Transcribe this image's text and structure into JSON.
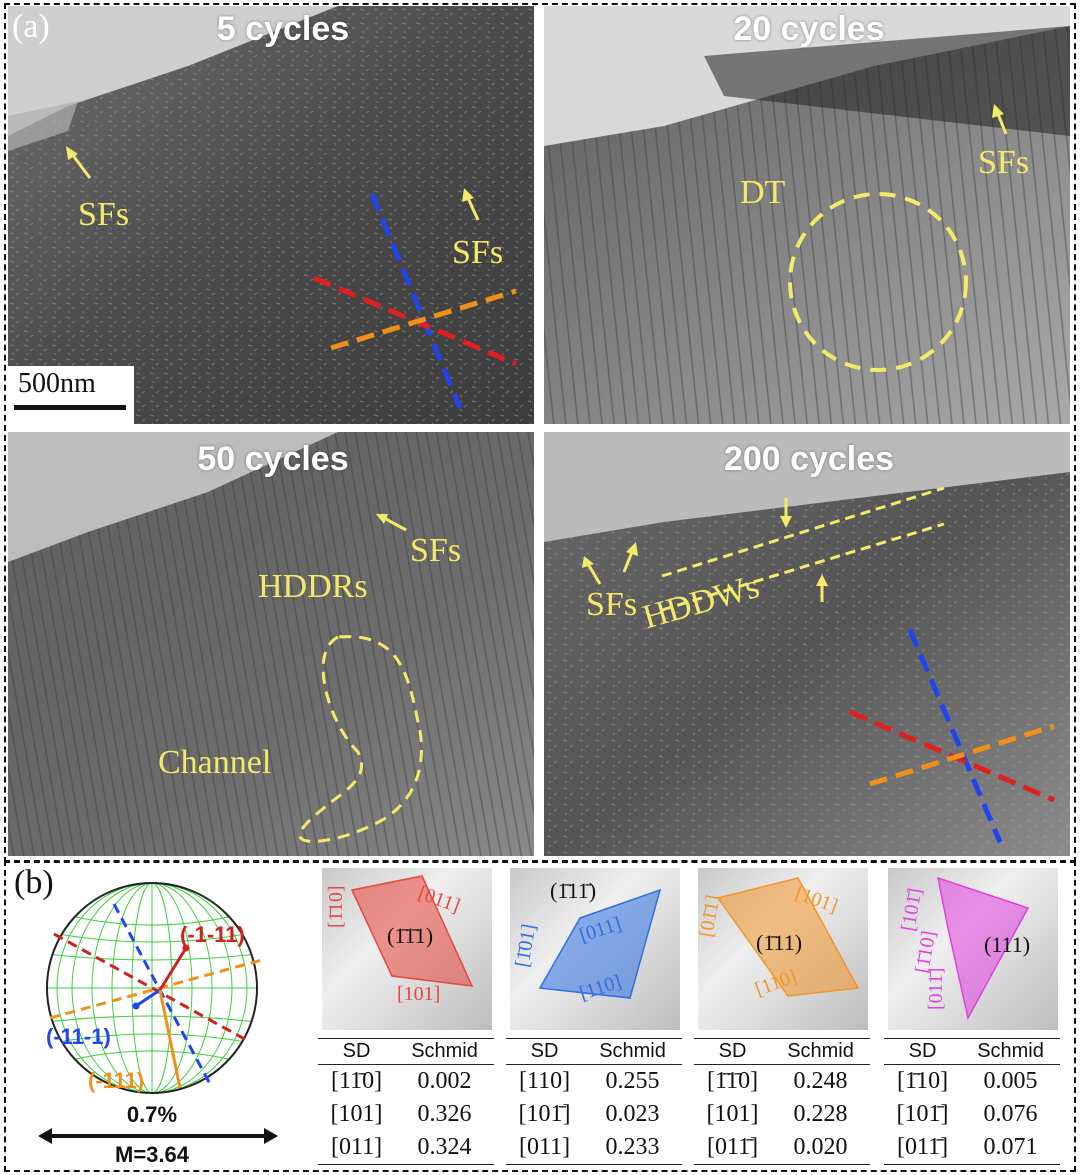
{
  "panel_a": {
    "label": "(a)",
    "scale_bar": "500nm",
    "titles": [
      "5 cycles",
      "20 cycles",
      "50 cycles",
      "200 cycles"
    ],
    "annotations": {
      "p1_sfs_left": "SFs",
      "p1_sfs_right": "SFs",
      "p2_dt": "DT",
      "p2_sfs": "SFs",
      "p3_sfs": "SFs",
      "p3_hddrs": "HDDRs",
      "p3_channel": "Channel",
      "p4_sfs": "SFs",
      "p4_hddws": "HDDWs"
    }
  },
  "panel_b": {
    "label": "(b)",
    "stereo": {
      "poles": [
        "(-1-11)",
        "(-11-1)",
        "(-111)"
      ],
      "strain": "0.7%",
      "m_value": "M=3.64"
    },
    "tetrahedra": [
      {
        "plane": "(1̄1̄1)",
        "dirs": [
          "[1̄10]",
          "[011]",
          "[101]"
        ],
        "color": "#e8453c"
      },
      {
        "plane": "(1̄11̄)",
        "dirs": [
          "[1̄01]",
          "[011]",
          "[110]"
        ],
        "color": "#2f6fe0"
      },
      {
        "plane": "(1̄11)",
        "dirs": [
          "[01̄1]",
          "[101]",
          "[110]"
        ],
        "color": "#f0962a"
      },
      {
        "plane": "(111)",
        "dirs": [
          "[101̄]",
          "[1̄10]",
          "[011̄]"
        ],
        "color": "#e040e0"
      }
    ],
    "tables": [
      {
        "head": [
          "SD",
          "Schmid"
        ],
        "rows": [
          [
            "[11̄0]",
            "0.002"
          ],
          [
            "[101]",
            "0.326"
          ],
          [
            "[011]",
            "0.324"
          ]
        ]
      },
      {
        "head": [
          "SD",
          "Schmid"
        ],
        "rows": [
          [
            "[110]",
            "0.255"
          ],
          [
            "[101̄]",
            "0.023"
          ],
          [
            "[011]",
            "0.233"
          ]
        ]
      },
      {
        "head": [
          "SD",
          "Schmid"
        ],
        "rows": [
          [
            "[1̄1̄0]",
            "0.248"
          ],
          [
            "[101]",
            "0.228"
          ],
          [
            "[011̄]",
            "0.020"
          ]
        ]
      },
      {
        "head": [
          "SD",
          "Schmid"
        ],
        "rows": [
          [
            "[1̄10]",
            "0.005"
          ],
          [
            "[101̄]",
            "0.076"
          ],
          [
            "[011̄]",
            "0.071"
          ]
        ]
      }
    ]
  }
}
